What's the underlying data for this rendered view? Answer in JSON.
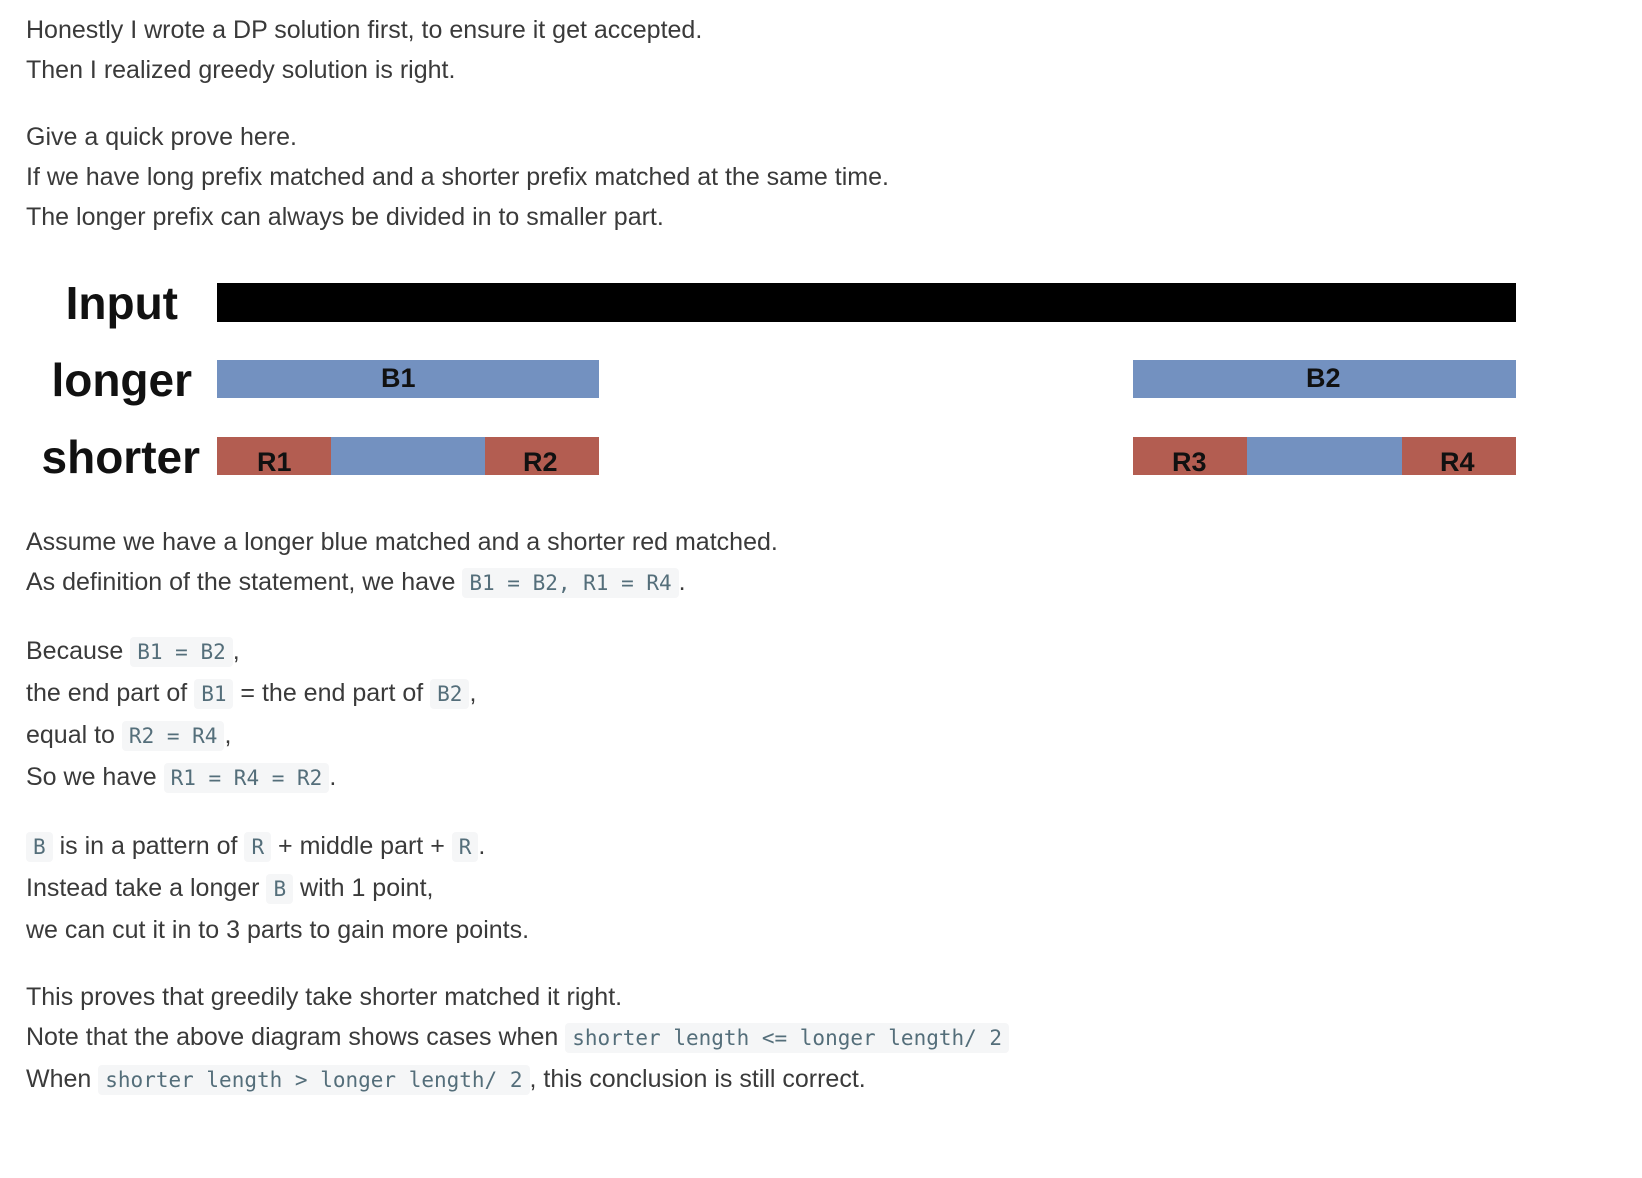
{
  "intro": {
    "line1": "Honestly I wrote a DP solution first, to ensure it get accepted.",
    "line2": "Then I realized greedy solution is right."
  },
  "prove": {
    "line1": "Give a quick prove here.",
    "line2": "If we have long prefix matched and a shorter prefix matched at the same time.",
    "line3": "The longer prefix can always be divided in to smaller part."
  },
  "diagram": {
    "row_labels": {
      "input": "Input",
      "longer": "longer",
      "shorter": "shorter"
    },
    "blocks": {
      "b1": "B1",
      "b2": "B2",
      "r1": "R1",
      "r2": "R2",
      "r3": "R3",
      "r4": "R4"
    },
    "colors": {
      "blue": "#7391c0",
      "red": "#b35d51",
      "black": "#000000"
    }
  },
  "assume": {
    "line1": "Assume we have a longer blue matched and a shorter red matched.",
    "line2_text": "As definition of the statement, we have ",
    "line2_code": "B1 = B2, R1 = R4",
    "line2_end": "."
  },
  "because": {
    "l1_text": "Because ",
    "l1_code": "B1 = B2",
    "l1_end": ",",
    "l2_text_a": "the end part of ",
    "l2_code_a": "B1",
    "l2_text_b": " = the end part of ",
    "l2_code_b": "B2",
    "l2_end": ",",
    "l3_text": "equal to ",
    "l3_code": "R2 = R4",
    "l3_end": ",",
    "l4_text": "So we have ",
    "l4_code": "R1 = R4 = R2",
    "l4_end": "."
  },
  "pattern": {
    "l1_code_a": "B",
    "l1_text_a": " is in a pattern of ",
    "l1_code_b": "R",
    "l1_text_b": " + middle part + ",
    "l1_code_c": "R",
    "l1_end": ".",
    "l2_text": "Instead take a longer ",
    "l2_code": "B",
    "l2_end": " with 1 point,",
    "l3_text": "we can cut it in to 3 parts to gain more points."
  },
  "conclusion": {
    "l1": "This proves that greedily take shorter matched it right.",
    "l2_text": "Note that the above diagram shows cases when ",
    "l2_code": "shorter length <= longer length/ 2",
    "l3_text": "When ",
    "l3_code": "shorter length > longer length/ 2",
    "l3_end": ", this conclusion is still correct."
  }
}
